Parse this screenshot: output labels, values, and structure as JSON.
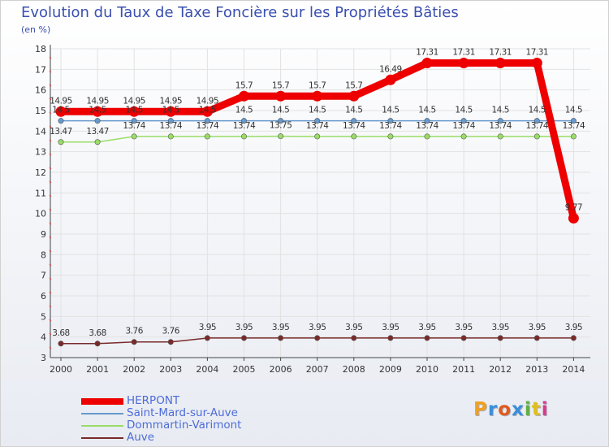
{
  "header": {
    "title": "Evolution du Taux de Taxe Foncière sur les Propriétés Bâties",
    "subtitle": "(en %)"
  },
  "logo": {
    "letters": [
      "P",
      "r",
      "o",
      "x",
      "i",
      "t",
      "i"
    ],
    "colors": [
      "#f0a020",
      "#3a8fd8",
      "#e05a1a",
      "#3a8fd8",
      "#60b040",
      "#e0c020",
      "#d83a8a"
    ]
  },
  "chart_data": {
    "type": "line",
    "title": "Evolution du Taux de Taxe Foncière sur les Propriétés Bâties",
    "ylabel": "(en %)",
    "xlabel": "",
    "x": [
      "2000",
      "2001",
      "2002",
      "2003",
      "2004",
      "2005",
      "2006",
      "2007",
      "2008",
      "2009",
      "2010",
      "2011",
      "2012",
      "2013",
      "2014"
    ],
    "ylim": [
      3,
      18
    ],
    "yticks": [
      "3",
      "4",
      "5",
      "6",
      "7",
      "8",
      "9",
      "10",
      "11",
      "12",
      "13",
      "14",
      "15",
      "16",
      "17",
      "18"
    ],
    "grid": true,
    "legend_position": "bottom-left",
    "series": [
      {
        "name": "HERPONT",
        "color": "#ee0000",
        "emphasis": true,
        "values": [
          14.95,
          14.95,
          14.95,
          14.95,
          14.95,
          15.7,
          15.7,
          15.7,
          15.7,
          16.49,
          17.31,
          17.31,
          17.31,
          17.31,
          9.77
        ],
        "labels": [
          "14.95",
          "14.95",
          "14.95",
          "14.95",
          "14.95",
          "15.7",
          "15.7",
          "15.7",
          "15.7",
          "16.49",
          "17.31",
          "17.31",
          "17.31",
          "17.31",
          "9.77"
        ]
      },
      {
        "name": "Saint-Mard-sur-Auve",
        "color": "#6699cc",
        "values": [
          14.5,
          14.5,
          14.5,
          14.5,
          14.5,
          14.5,
          14.5,
          14.5,
          14.5,
          14.5,
          14.5,
          14.5,
          14.5,
          14.5,
          14.5
        ],
        "labels": [
          "14.5",
          "14.5",
          "14.5",
          "14.5",
          "14.5",
          "14.5",
          "14.5",
          "14.5",
          "14.5",
          "14.5",
          "14.5",
          "14.5",
          "14.5",
          "14.5",
          "14.5"
        ]
      },
      {
        "name": "Dommartin-Varimont",
        "color": "#99dd66",
        "values": [
          13.47,
          13.47,
          13.74,
          13.74,
          13.74,
          13.74,
          13.75,
          13.74,
          13.74,
          13.74,
          13.74,
          13.74,
          13.74,
          13.74,
          13.74
        ],
        "labels": [
          "13.47",
          "13.47",
          "13.74",
          "13.74",
          "13.74",
          "13.74",
          "13.75",
          "13.74",
          "13.74",
          "13.74",
          "13.74",
          "13.74",
          "13.74",
          "13.74",
          "13.74"
        ]
      },
      {
        "name": "Auve",
        "color": "#7a2a2a",
        "values": [
          3.68,
          3.68,
          3.76,
          3.76,
          3.95,
          3.95,
          3.95,
          3.95,
          3.95,
          3.95,
          3.95,
          3.95,
          3.95,
          3.95,
          3.95
        ],
        "labels": [
          "3.68",
          "3.68",
          "3.76",
          "3.76",
          "3.95",
          "3.95",
          "3.95",
          "3.95",
          "3.95",
          "3.95",
          "3.95",
          "3.95",
          "3.95",
          "3.95",
          "3.95"
        ]
      }
    ]
  }
}
